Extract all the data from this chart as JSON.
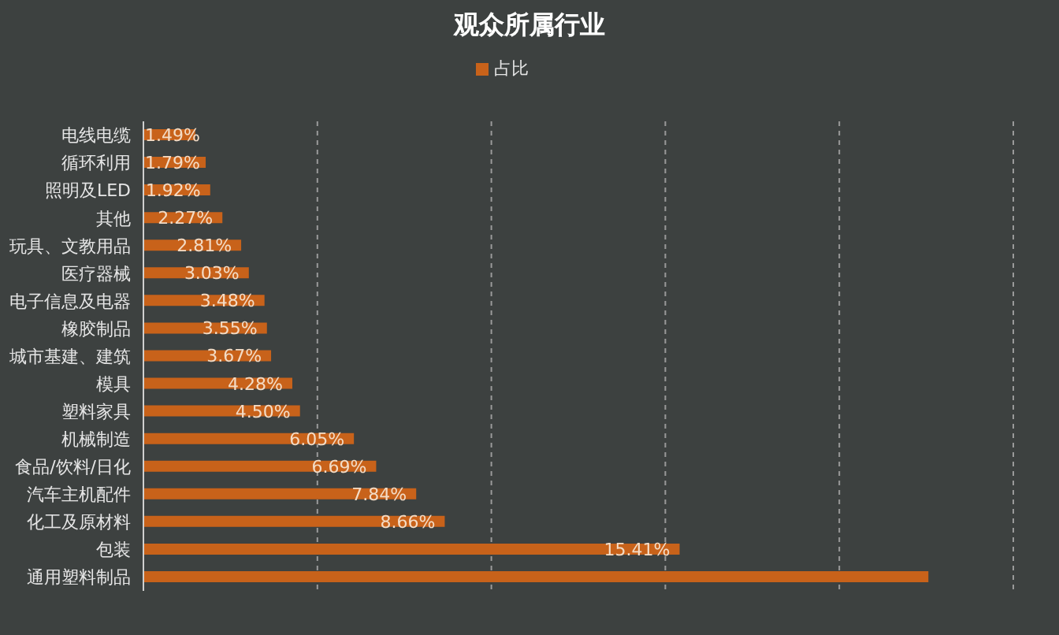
{
  "chart_data": {
    "type": "bar",
    "orientation": "horizontal",
    "title": "观众所属行业",
    "categories": [
      "电线电缆",
      "循环利用",
      "照明及LED",
      "其他",
      "玩具、文教用品",
      "医疗器械",
      "电子信息及电器",
      "橡胶制品",
      "城市基建、建筑",
      "模具",
      "塑料家具",
      "机械制造",
      "食品/饮料/日化",
      "汽车主机配件",
      "化工及原材料",
      "包装",
      "通用塑料制品"
    ],
    "series": [
      {
        "name": "占比",
        "color": "#c8621a",
        "values": [
          1.49,
          1.79,
          1.92,
          2.27,
          2.81,
          3.03,
          3.48,
          3.55,
          3.67,
          4.28,
          4.5,
          6.05,
          6.69,
          7.84,
          8.66,
          15.41,
          22.56
        ],
        "value_labels": [
          "1.49%",
          "1.79%",
          "1.92%",
          "2.27%",
          "2.81%",
          "3.03%",
          "3.48%",
          "3.55%",
          "3.67%",
          "4.28%",
          "4.50%",
          "6.05%",
          "6.69%",
          "7.84%",
          "8.66%",
          "15.41%",
          null
        ]
      }
    ],
    "tick_labels": "y",
    "grid": "x",
    "legend": "top"
  }
}
